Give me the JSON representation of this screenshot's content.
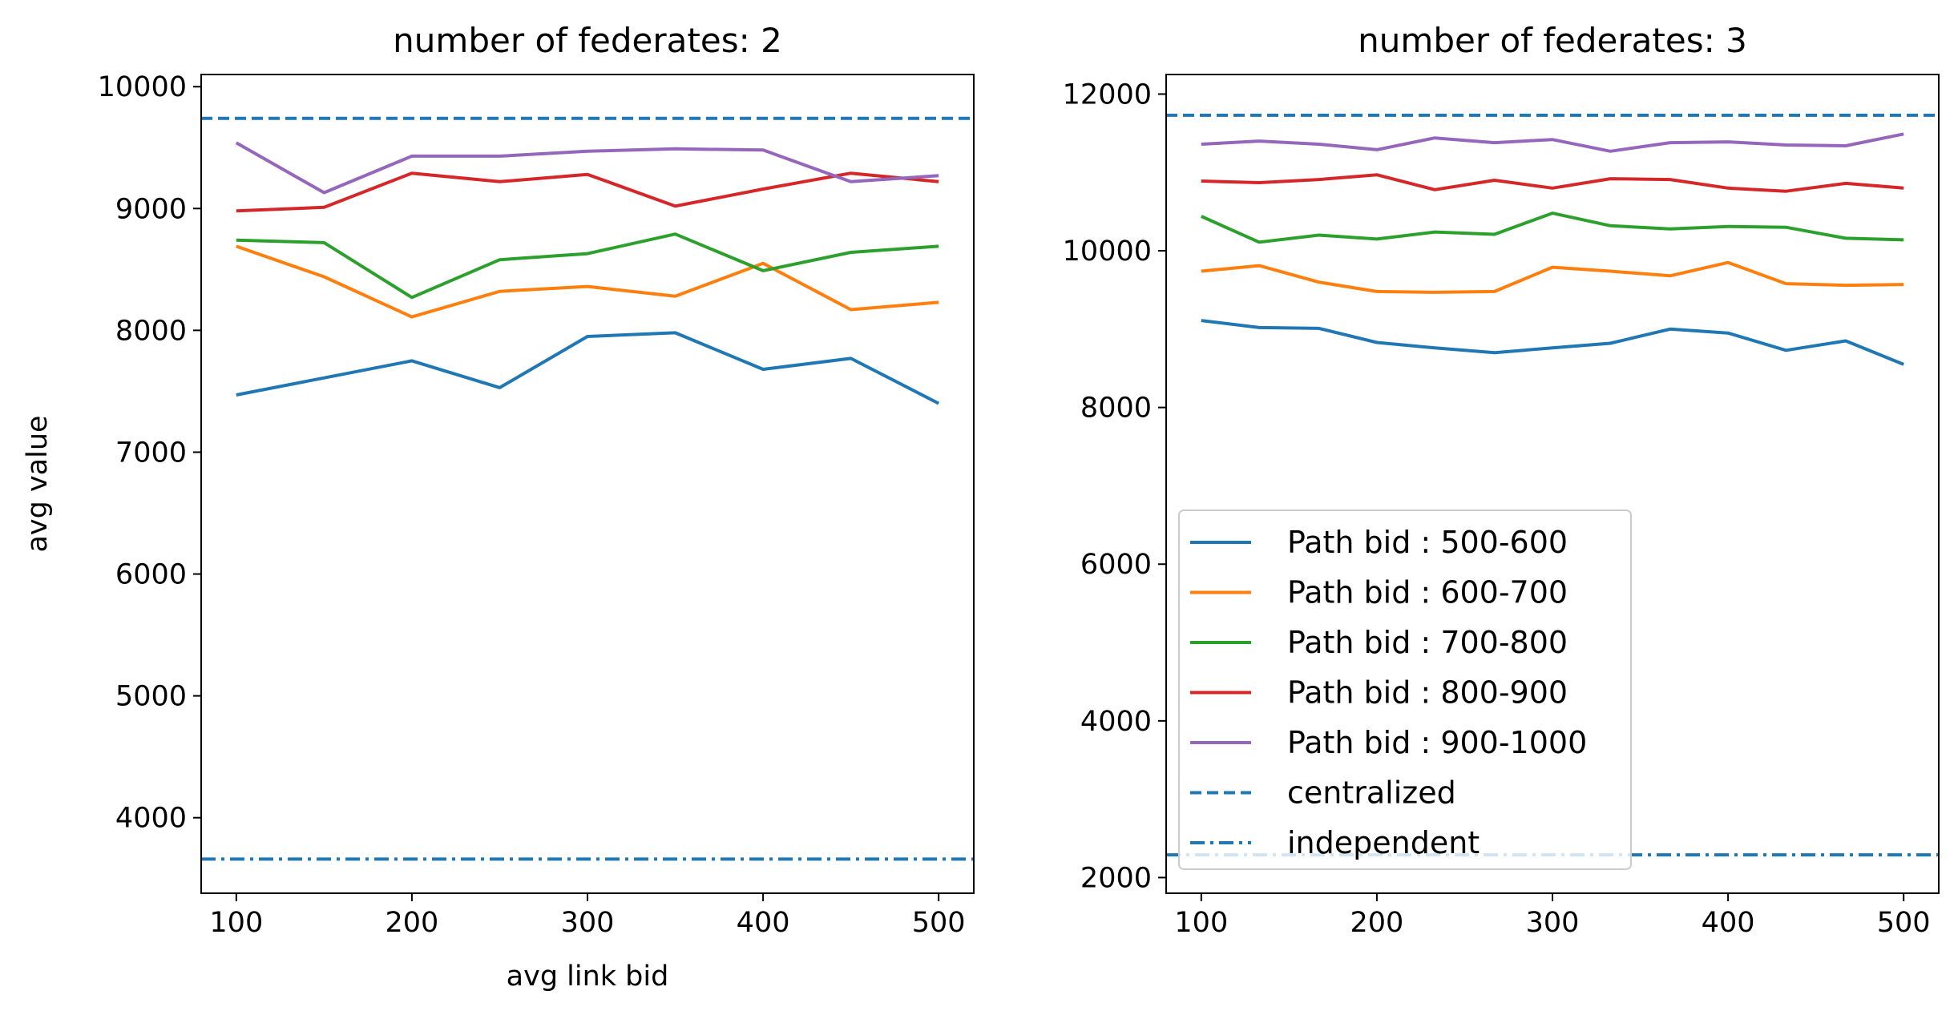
{
  "chart_data": [
    {
      "type": "line",
      "title": "number of federates: 2",
      "xlabel": "avg link bid",
      "ylabel": "avg value",
      "xlim": [
        80,
        520
      ],
      "ylim": [
        3380,
        10100
      ],
      "xticks": [
        100,
        200,
        300,
        400,
        500
      ],
      "yticks": [
        4000,
        5000,
        6000,
        7000,
        8000,
        9000,
        10000
      ],
      "grid": false,
      "series": [
        {
          "name": "Path bid : 500-600",
          "color": "#1f77b4",
          "x": [
            100,
            150,
            200,
            250,
            300,
            350,
            400,
            450,
            500
          ],
          "values": [
            7470,
            7610,
            7750,
            7530,
            7950,
            7980,
            7680,
            7770,
            7400
          ]
        },
        {
          "name": "Path bid : 600-700",
          "color": "#ff7f0e",
          "x": [
            100,
            150,
            200,
            250,
            300,
            350,
            400,
            450,
            500
          ],
          "values": [
            8690,
            8440,
            8110,
            8320,
            8360,
            8280,
            8550,
            8170,
            8230
          ]
        },
        {
          "name": "Path bid : 700-800",
          "color": "#2ca02c",
          "x": [
            100,
            150,
            200,
            250,
            300,
            350,
            400,
            450,
            500
          ],
          "values": [
            8740,
            8720,
            8270,
            8580,
            8630,
            8790,
            8490,
            8640,
            8690
          ]
        },
        {
          "name": "Path bid : 800-900",
          "color": "#d62728",
          "x": [
            100,
            150,
            200,
            250,
            300,
            350,
            400,
            450,
            500
          ],
          "values": [
            8980,
            9010,
            9290,
            9220,
            9280,
            9020,
            9160,
            9290,
            9220
          ]
        },
        {
          "name": "Path bid : 900-1000",
          "color": "#9467bd",
          "x": [
            100,
            150,
            200,
            250,
            300,
            350,
            400,
            450,
            500
          ],
          "values": [
            9540,
            9130,
            9430,
            9430,
            9470,
            9490,
            9480,
            9220,
            9270
          ]
        }
      ],
      "reference_lines": [
        {
          "name": "centralized",
          "value": 9740,
          "style": "dashed",
          "color": "#1f77b4"
        },
        {
          "name": "independent",
          "value": 3660,
          "style": "dashdot",
          "color": "#1f77b4"
        }
      ]
    },
    {
      "type": "line",
      "title": "number of federates: 3",
      "xlabel": "",
      "ylabel": "",
      "xlim": [
        80,
        520
      ],
      "ylim": [
        1800,
        12250
      ],
      "xticks": [
        100,
        200,
        300,
        400,
        500
      ],
      "yticks": [
        2000,
        4000,
        6000,
        8000,
        10000,
        12000
      ],
      "grid": false,
      "legend": "lower-left",
      "series": [
        {
          "name": "Path bid : 500-600",
          "color": "#1f77b4",
          "x": [
            100,
            133,
            167,
            200,
            233,
            267,
            300,
            333,
            367,
            400,
            433,
            467,
            500
          ],
          "values": [
            9110,
            9020,
            9010,
            8830,
            8760,
            8700,
            8760,
            8820,
            9000,
            8950,
            8730,
            8850,
            8550
          ]
        },
        {
          "name": "Path bid : 600-700",
          "color": "#ff7f0e",
          "x": [
            100,
            133,
            167,
            200,
            233,
            267,
            300,
            333,
            367,
            400,
            433,
            467,
            500
          ],
          "values": [
            9740,
            9810,
            9600,
            9480,
            9470,
            9480,
            9790,
            9740,
            9680,
            9850,
            9580,
            9560,
            9570
          ]
        },
        {
          "name": "Path bid : 700-800",
          "color": "#2ca02c",
          "x": [
            100,
            133,
            167,
            200,
            233,
            267,
            300,
            333,
            367,
            400,
            433,
            467,
            500
          ],
          "values": [
            10440,
            10110,
            10200,
            10150,
            10240,
            10210,
            10480,
            10320,
            10280,
            10310,
            10300,
            10160,
            10140
          ]
        },
        {
          "name": "Path bid : 800-900",
          "color": "#d62728",
          "x": [
            100,
            133,
            167,
            200,
            233,
            267,
            300,
            333,
            367,
            400,
            433,
            467,
            500
          ],
          "values": [
            10890,
            10870,
            10910,
            10970,
            10780,
            10900,
            10800,
            10920,
            10910,
            10800,
            10760,
            10860,
            10800
          ]
        },
        {
          "name": "Path bid : 900-1000",
          "color": "#9467bd",
          "x": [
            100,
            133,
            167,
            200,
            233,
            267,
            300,
            333,
            367,
            400,
            433,
            467,
            500
          ],
          "values": [
            11360,
            11400,
            11360,
            11290,
            11440,
            11380,
            11420,
            11270,
            11380,
            11390,
            11350,
            11340,
            11490
          ]
        }
      ],
      "reference_lines": [
        {
          "name": "centralized",
          "value": 11730,
          "style": "dashed",
          "color": "#1f77b4"
        },
        {
          "name": "independent",
          "value": 2290,
          "style": "dashdot",
          "color": "#1f77b4"
        }
      ]
    }
  ],
  "legend": {
    "entries": [
      {
        "label": "Path bid : 500-600",
        "color": "#1f77b4",
        "style": "solid"
      },
      {
        "label": "Path bid : 600-700",
        "color": "#ff7f0e",
        "style": "solid"
      },
      {
        "label": "Path bid : 700-800",
        "color": "#2ca02c",
        "style": "solid"
      },
      {
        "label": "Path bid : 800-900",
        "color": "#d62728",
        "style": "solid"
      },
      {
        "label": "Path bid : 900-1000",
        "color": "#9467bd",
        "style": "solid"
      },
      {
        "label": "centralized",
        "color": "#1f77b4",
        "style": "dashed"
      },
      {
        "label": "independent",
        "color": "#1f77b4",
        "style": "dashdot"
      }
    ]
  }
}
